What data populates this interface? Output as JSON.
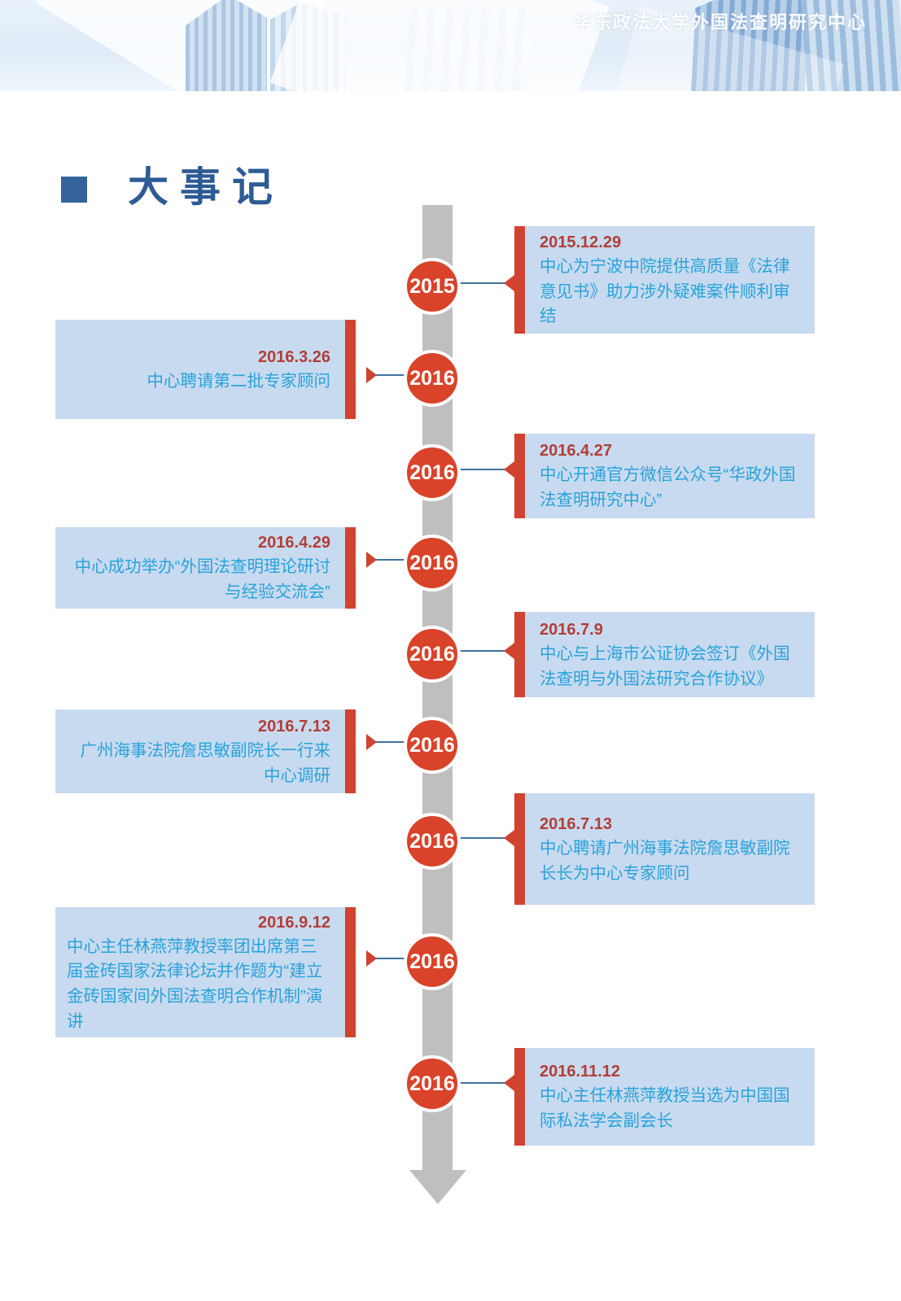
{
  "header": {
    "title": "华东政法大学外国法查明研究中心"
  },
  "section": {
    "title": "大事记"
  },
  "timeline": {
    "events": [
      {
        "year": "2015",
        "date": "2015.12.29",
        "text": "中心为宁波中院提供高质量《法律意见书》助力涉外疑难案件顺利审结",
        "side": "right"
      },
      {
        "year": "2016",
        "date": "2016.3.26",
        "text": "中心聘请第二批专家顾问",
        "side": "left"
      },
      {
        "year": "2016",
        "date": "2016.4.27",
        "text": "中心开通官方微信公众号“华政外国法查明研究中心”",
        "side": "right"
      },
      {
        "year": "2016",
        "date": "2016.4.29",
        "text": "中心成功举办“外国法查明理论研讨与经验交流会”",
        "side": "left"
      },
      {
        "year": "2016",
        "date": "2016.7.9",
        "text": "中心与上海市公证协会签订《外国法查明与外国法研究合作协议》",
        "side": "right"
      },
      {
        "year": "2016",
        "date": "2016.7.13",
        "text": "广州海事法院詹思敏副院长一行来中心调研",
        "side": "left"
      },
      {
        "year": "2016",
        "date": "2016.7.13",
        "text": "中心聘请广州海事法院詹思敏副院长长为中心专家顾问",
        "side": "right"
      },
      {
        "year": "2016",
        "date": "2016.9.12",
        "text": "中心主任林燕萍教授率团出席第三届金砖国家法律论坛并作题为“建立金砖国家间外国法查明合作机制”演讲",
        "side": "left"
      },
      {
        "year": "2016",
        "date": "2016.11.12",
        "text": "中心主任林燕萍教授当选为中国国际私法学会副会长",
        "side": "right"
      }
    ]
  },
  "colors": {
    "accent_red": "#d0432f",
    "circle_red": "#d9432a",
    "date_red": "#b23e38",
    "body_blue": "#29a3da",
    "card_bg": "#c8daef",
    "timeline_gray": "#bfbfbf",
    "title_blue": "#2d5b94",
    "connector_blue": "#40719f"
  }
}
